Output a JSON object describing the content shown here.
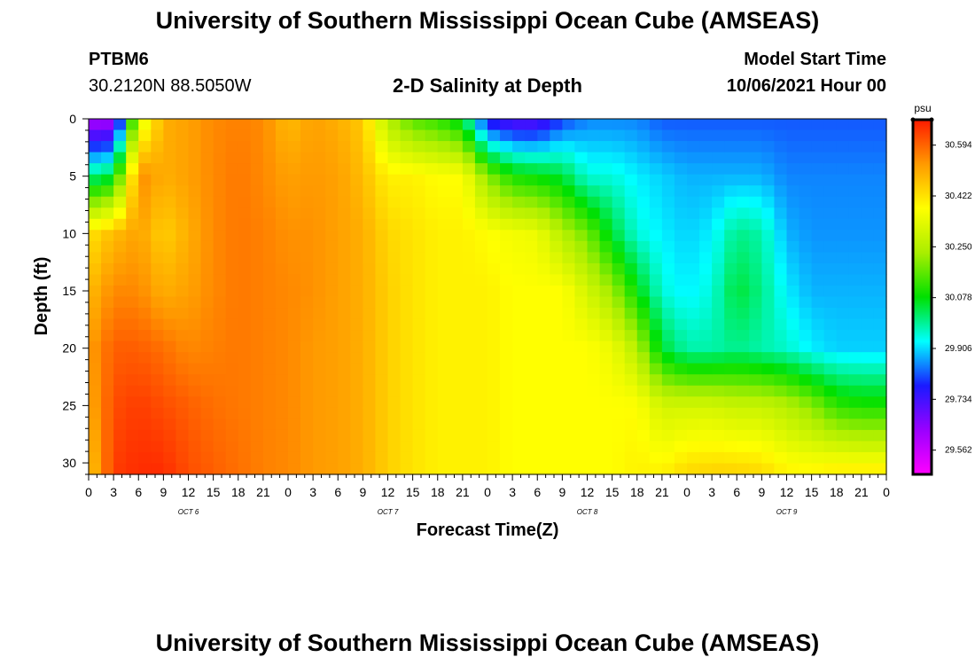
{
  "page": {
    "title_top": "University of Southern Mississippi Ocean Cube (AMSEAS)",
    "title_bottom": "University of Southern Mississippi Ocean Cube (AMSEAS)",
    "station_name": "PTBM6",
    "station_coords": "30.2120N  88.5050W",
    "plot_title": "2-D Salinity at Depth",
    "model_label": "Model Start Time",
    "model_time": "10/06/2021 Hour 00"
  },
  "colors": {
    "magenta": "#ff00ff",
    "purple": "#9a00ff",
    "blue": "#1a1aff",
    "cyan": "#00ffff",
    "green": "#00e000",
    "yellow_green": "#aaee00",
    "yellow": "#ffff00",
    "orange": "#ff9a00",
    "red": "#ff1a00"
  },
  "chart_data": {
    "type": "heatmap",
    "title": "2-D Salinity at Depth",
    "xlabel": "Forecast Time(Z)",
    "ylabel": "Depth (ft)",
    "x_tick_labels": [
      "0",
      "3",
      "6",
      "9",
      "12",
      "15",
      "18",
      "21",
      "0",
      "3",
      "6",
      "9",
      "12",
      "15",
      "18",
      "21",
      "0",
      "3",
      "6",
      "9",
      "12",
      "15",
      "18",
      "21",
      "0",
      "3",
      "6",
      "9",
      "12",
      "15",
      "18",
      "21",
      "0"
    ],
    "x_range_hours": [
      0,
      96
    ],
    "day_labels": [
      {
        "label": "OCT 6",
        "hour": 12
      },
      {
        "label": "OCT 7",
        "hour": 36
      },
      {
        "label": "OCT 8",
        "hour": 60
      },
      {
        "label": "OCT 9",
        "hour": 84
      }
    ],
    "y_ticks": [
      0,
      5,
      10,
      15,
      20,
      25,
      30
    ],
    "y_range_ft": [
      0,
      31
    ],
    "colorbar": {
      "unit": "psu",
      "labels": [
        "30.594",
        "30.422",
        "30.250",
        "30.078",
        "29.906",
        "29.734",
        "29.562"
      ],
      "range": [
        29.48,
        30.68
      ]
    },
    "times_hours": [
      0,
      3,
      6,
      9,
      12,
      15,
      18,
      21,
      24,
      27,
      30,
      33,
      36,
      39,
      42,
      45,
      48,
      51,
      54,
      57,
      60,
      63,
      66,
      69,
      72,
      75,
      78,
      81,
      84,
      87,
      90,
      93,
      96
    ],
    "depths_ft": [
      0,
      5,
      10,
      15,
      20,
      25,
      31
    ],
    "salinity_psu": [
      [
        29.6,
        30.0,
        30.42,
        30.48,
        30.52,
        30.5,
        30.45
      ],
      [
        29.6,
        30.05,
        30.48,
        30.55,
        30.6,
        30.62,
        30.64
      ],
      [
        30.3,
        30.55,
        30.52,
        30.55,
        30.6,
        30.64,
        30.66
      ],
      [
        30.5,
        30.5,
        30.45,
        30.5,
        30.58,
        30.62,
        30.66
      ],
      [
        30.52,
        30.52,
        30.5,
        30.52,
        30.55,
        30.6,
        30.62
      ],
      [
        30.55,
        30.55,
        30.55,
        30.55,
        30.56,
        30.58,
        30.6
      ],
      [
        30.56,
        30.57,
        30.57,
        30.57,
        30.57,
        30.57,
        30.58
      ],
      [
        30.55,
        30.55,
        30.56,
        30.56,
        30.56,
        30.56,
        30.56
      ],
      [
        30.48,
        30.52,
        30.54,
        30.55,
        30.55,
        30.55,
        30.55
      ],
      [
        30.52,
        30.53,
        30.54,
        30.54,
        30.53,
        30.53,
        30.53
      ],
      [
        30.5,
        30.52,
        30.52,
        30.52,
        30.52,
        30.52,
        30.52
      ],
      [
        30.46,
        30.48,
        30.5,
        30.5,
        30.5,
        30.5,
        30.5
      ],
      [
        30.25,
        30.4,
        30.44,
        30.45,
        30.45,
        30.45,
        30.45
      ],
      [
        30.15,
        30.4,
        30.42,
        30.42,
        30.42,
        30.42,
        30.42
      ],
      [
        30.12,
        30.38,
        30.4,
        30.4,
        30.4,
        30.4,
        30.4
      ],
      [
        30.05,
        30.38,
        30.4,
        30.4,
        30.4,
        30.4,
        30.4
      ],
      [
        29.75,
        30.2,
        30.38,
        30.4,
        30.4,
        30.4,
        30.4
      ],
      [
        29.7,
        30.1,
        30.36,
        30.38,
        30.38,
        30.38,
        30.38
      ],
      [
        29.7,
        30.08,
        30.35,
        30.38,
        30.38,
        30.38,
        30.38
      ],
      [
        29.8,
        30.05,
        30.25,
        30.38,
        30.38,
        30.38,
        30.38
      ],
      [
        29.85,
        29.95,
        30.18,
        30.3,
        30.38,
        30.38,
        30.38
      ],
      [
        29.85,
        29.95,
        30.05,
        30.22,
        30.35,
        30.38,
        30.38
      ],
      [
        29.85,
        29.92,
        29.95,
        30.08,
        30.25,
        30.38,
        30.4
      ],
      [
        29.82,
        29.9,
        29.92,
        29.95,
        30.05,
        30.3,
        30.4
      ],
      [
        29.82,
        29.88,
        29.9,
        29.92,
        29.98,
        30.3,
        30.44
      ],
      [
        29.82,
        29.88,
        29.92,
        29.95,
        29.98,
        30.3,
        30.45
      ],
      [
        29.82,
        29.88,
        30.0,
        30.05,
        30.0,
        30.28,
        30.45
      ],
      [
        29.82,
        29.88,
        29.98,
        30.0,
        29.98,
        30.28,
        30.44
      ],
      [
        29.82,
        29.85,
        29.88,
        29.92,
        29.96,
        30.25,
        30.4
      ],
      [
        29.82,
        29.85,
        29.86,
        29.88,
        29.92,
        30.2,
        30.4
      ],
      [
        29.82,
        29.85,
        29.86,
        29.88,
        29.9,
        30.12,
        30.42
      ],
      [
        29.82,
        29.85,
        29.86,
        29.88,
        29.9,
        30.1,
        30.42
      ],
      [
        29.82,
        29.85,
        29.86,
        29.88,
        29.9,
        30.1,
        30.42
      ]
    ]
  }
}
